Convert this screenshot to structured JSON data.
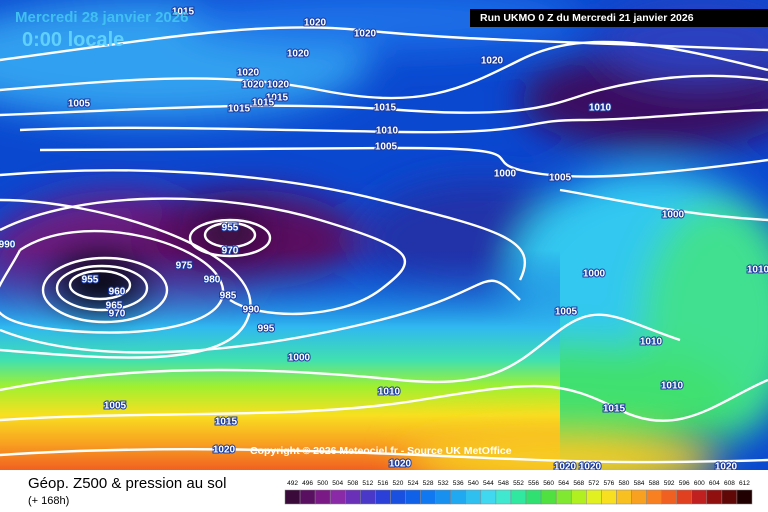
{
  "header": {
    "date": "Mercredi 28 janvier 2026",
    "time": "0:00 locale",
    "run": "Run UKMO 0 Z du Mercredi 21 janvier 2026"
  },
  "copyright": "Copyright © 2026 Meteociel.fr - Source UK MetOffice",
  "footer": {
    "title": "Géop. Z500 & pression au sol",
    "lead": "(+ 168h)"
  },
  "isobar_labels": [
    1015,
    1020,
    1020,
    1020,
    1020,
    1020,
    1020,
    1020,
    1015,
    1015,
    1015,
    1005,
    1015,
    1010,
    1005,
    1010,
    1000,
    1005,
    1000,
    990,
    955,
    970,
    975,
    980,
    985,
    990,
    995,
    955,
    960,
    965,
    970,
    1000,
    1000,
    1005,
    1010,
    1010,
    1010,
    1005,
    1015,
    1015,
    1020,
    1020,
    1020,
    1020,
    1020,
    1010
  ],
  "colorbar": {
    "labels": [
      492,
      496,
      500,
      504,
      508,
      512,
      516,
      520,
      524,
      528,
      532,
      536,
      540,
      544,
      548,
      552,
      556,
      560,
      564,
      568,
      572,
      576,
      580,
      584,
      588,
      592,
      596,
      600,
      604,
      608,
      612
    ],
    "colors": [
      "#3a0a3a",
      "#5a1060",
      "#7a1a86",
      "#8a2aa6",
      "#6a30b8",
      "#4a38c8",
      "#2a40d8",
      "#1a50e0",
      "#1060e8",
      "#1078f0",
      "#1890f0",
      "#20a8f0",
      "#30c0f0",
      "#40d8f0",
      "#40e8d0",
      "#30e8a0",
      "#30e070",
      "#50e040",
      "#80e830",
      "#b0f020",
      "#e0f020",
      "#f8e020",
      "#f8c020",
      "#f8a020",
      "#f88020",
      "#f06020",
      "#e04020",
      "#c02020",
      "#901010",
      "#600808",
      "#200000"
    ]
  }
}
